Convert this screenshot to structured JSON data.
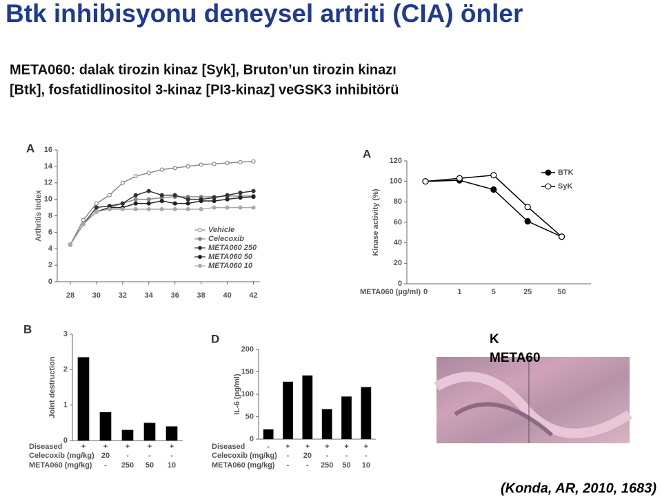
{
  "header": {
    "title": "Btk inhibisyonu deneysel artriti (CIA) önler",
    "subtitle": [
      "META060: dalak tirozin kinaz [Syk], Bruton’un tirozin kinazı",
      "[Btk], fosfatidlinositol 3-kinaz [PI3-kinaz] veGSK3 inhibitörü"
    ]
  },
  "chart_data": [
    {
      "type": "line",
      "panel": "A",
      "y_label": "Arthritis Index",
      "x": [
        28,
        29,
        30,
        31,
        32,
        33,
        34,
        35,
        36,
        37,
        38,
        39,
        40,
        41,
        42
      ],
      "xlim": [
        27,
        42.5
      ],
      "xticks": [
        28,
        30,
        32,
        34,
        36,
        38,
        40,
        42
      ],
      "ylim": [
        0,
        16
      ],
      "yticks": [
        0,
        2,
        4,
        6,
        8,
        10,
        12,
        14,
        16
      ],
      "legend": "lower-right",
      "series": [
        {
          "name": "Vehicle",
          "color": "#888888",
          "marker": "open",
          "values": [
            4.5,
            7.5,
            9.5,
            10.5,
            12,
            12.8,
            13.2,
            13.6,
            13.8,
            14,
            14.2,
            14.3,
            14.4,
            14.5,
            14.6
          ]
        },
        {
          "name": "Celecoxib",
          "color": "#888888",
          "marker": "filled",
          "values": [
            4.5,
            7,
            8.5,
            9,
            9.5,
            10,
            10,
            10.2,
            10.3,
            10.3,
            10.3,
            10.3,
            10.4,
            10.4,
            10.4
          ]
        },
        {
          "name": "META060 250",
          "color": "#333333",
          "marker": "filled",
          "values": [
            4.5,
            7,
            9,
            9.2,
            9.5,
            10.5,
            11,
            10.5,
            10.5,
            10,
            10,
            10.2,
            10.5,
            10.8,
            11
          ]
        },
        {
          "name": "META060 50",
          "color": "#222222",
          "marker": "filled",
          "values": [
            4.5,
            7,
            8.5,
            9,
            9,
            9.5,
            9.5,
            9.8,
            9.5,
            9.5,
            9.8,
            9.8,
            10,
            10.2,
            10.3
          ]
        },
        {
          "name": "META060 10",
          "color": "#aaaaaa",
          "marker": "filled",
          "values": [
            4.5,
            7,
            8.5,
            8.8,
            8.8,
            8.8,
            8.8,
            8.8,
            8.8,
            8.8,
            8.8,
            9,
            9,
            9,
            9
          ]
        }
      ]
    },
    {
      "type": "line",
      "panel": "A",
      "y_label": "Kinase activity (%)",
      "x_label": "META060 (µg/ml)",
      "categories": [
        "0",
        "1",
        "5",
        "25",
        "50"
      ],
      "ylim": [
        0,
        120
      ],
      "yticks": [
        0,
        20,
        40,
        60,
        80,
        100,
        120
      ],
      "legend": "upper-right",
      "series": [
        {
          "name": "BTK",
          "color": "#000000",
          "marker": "filled",
          "values": [
            100,
            101,
            92,
            61,
            46
          ]
        },
        {
          "name": "SyK",
          "color": "#000000",
          "marker": "open",
          "values": [
            100,
            103,
            106,
            75,
            46
          ]
        }
      ]
    },
    {
      "type": "bar",
      "panel": "B",
      "y_label": "Joint destruction",
      "color": "#000000",
      "ylim": [
        0,
        3
      ],
      "yticks": [
        0,
        1,
        2,
        3
      ],
      "values": [
        2.35,
        0.8,
        0.3,
        0.5,
        0.4
      ],
      "rows": [
        {
          "label": "Diseased",
          "cells": [
            "+",
            "+",
            "+",
            "+",
            "+"
          ]
        },
        {
          "label": "Celecoxib (mg/kg)",
          "cells": [
            "-",
            "20",
            "-",
            "-",
            "-"
          ]
        },
        {
          "label": "META060 (mg/kg)",
          "cells": [
            "-",
            "-",
            "250",
            "50",
            "10"
          ]
        }
      ]
    },
    {
      "type": "bar",
      "panel": "D",
      "y_label": "IL-6 (pg/ml)",
      "color": "#000000",
      "ylim": [
        0,
        200
      ],
      "yticks": [
        0,
        50,
        100,
        150,
        200
      ],
      "values": [
        22,
        128,
        142,
        67,
        95,
        116
      ],
      "rows": [
        {
          "label": "Diseased",
          "cells": [
            "-",
            "+",
            "+",
            "+",
            "+",
            "+"
          ]
        },
        {
          "label": "Celecoxib (mg/kg)",
          "cells": [
            "-",
            "-",
            "20",
            "-",
            "-",
            "-"
          ]
        },
        {
          "label": "META060 (mg/kg)",
          "cells": [
            "-",
            "-",
            "-",
            "250",
            "50",
            "10"
          ]
        }
      ]
    }
  ],
  "image": {
    "label": [
      "K",
      "META60"
    ]
  },
  "citation": "(Konda, AR, 2010, 1683)"
}
